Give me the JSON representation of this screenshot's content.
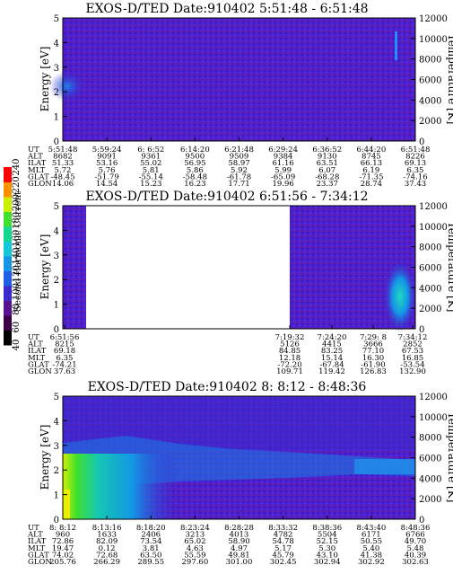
{
  "panels": [
    {
      "title": "EXOS-D/TED   Date:910402   5:51:48 - 6:51:48",
      "ylabel_left": "Energy [eV]",
      "ylabel_right": "Temperature [K]",
      "y_ticks": [
        "0",
        "1",
        "2",
        "3",
        "4",
        "5"
      ],
      "t_ticks": [
        "0",
        "2000",
        "4000",
        "6000",
        "8000",
        "10000",
        "12000"
      ],
      "eph_labels": [
        "UT",
        "ALT",
        "ILAT",
        "MLT",
        "GLAT",
        "GLON"
      ],
      "eph_columns": [
        [
          "5:51:48",
          "8682",
          "51.33",
          "5.72",
          "-48.45",
          "14.06"
        ],
        [
          "5:59:24",
          "9091",
          "53.16",
          "5.76",
          "-51.79",
          "14.54"
        ],
        [
          "6: 6:52",
          "9361",
          "55.02",
          "5.81",
          "-55.14",
          "15.23"
        ],
        [
          "6:14:20",
          "9500",
          "56.95",
          "5.86",
          "-58.48",
          "16.23"
        ],
        [
          "6:21:48",
          "9509",
          "58.97",
          "5.92",
          "-61.78",
          "17.71"
        ],
        [
          "6:29:24",
          "9384",
          "61.16",
          "5.99",
          "-65.09",
          "19.96"
        ],
        [
          "6:36:52",
          "9130",
          "63.51",
          "6.07",
          "-68.28",
          "23.37"
        ],
        [
          "6:44:20",
          "8745",
          "66.13",
          "6.19",
          "-71.35",
          "28.74"
        ],
        [
          "6:51:48",
          "8226",
          "69.13",
          "6.35",
          "-74.16",
          "37.43"
        ]
      ]
    },
    {
      "title": "EXOS-D/TED   Date:910402   6:51:56 - 7:34:12",
      "ylabel_left": "Energy [eV]",
      "ylabel_right": "Temperature [K]",
      "y_ticks": [
        "0",
        "1",
        "2",
        "3",
        "4",
        "5"
      ],
      "t_ticks": [
        "0",
        "2000",
        "4000",
        "6000",
        "8000",
        "10000",
        "12000"
      ],
      "eph_labels": [
        "UT",
        "ALT",
        "ILAT",
        "MLT",
        "GLAT",
        "GLON"
      ],
      "eph_left": [
        "6:51:56",
        "8215",
        "69.18",
        "6.35",
        "-74.21",
        "37.63"
      ],
      "eph_columns": [
        [
          "7:19:32",
          "5126",
          "84.85",
          "12.18",
          "-72.20",
          "109.71"
        ],
        [
          "7:24:20",
          "4415",
          "83.25",
          "15.14",
          "-67.84",
          "119.42"
        ],
        [
          "7:29: 8",
          "3666",
          "77.10",
          "16.30",
          "-61.90",
          "126.83"
        ],
        [
          "7:34:12",
          "2852",
          "67.53",
          "16.85",
          "-53.54",
          "132.90"
        ]
      ]
    },
    {
      "title": "EXOS-D/TED   Date:910402   8: 8:12 - 8:48:36",
      "ylabel_left": "Energy [eV]",
      "ylabel_right": "Temperature [K]",
      "y_ticks": [
        "0",
        "1",
        "2",
        "3",
        "4",
        "5"
      ],
      "t_ticks": [
        "0",
        "2000",
        "4000",
        "6000",
        "8000",
        "10000",
        "12000"
      ],
      "eph_labels": [
        "UT",
        "ALT",
        "ILAT",
        "MLT",
        "GLAT",
        "GLON"
      ],
      "eph_columns": [
        [
          "8: 8:12",
          "960",
          "72.86",
          "19.47",
          "74.02",
          "205.76"
        ],
        [
          "8:13:16",
          "1633",
          "82.09",
          "0.12",
          "72.68",
          "266.29"
        ],
        [
          "8:18:20",
          "2406",
          "73.54",
          "3.81",
          "63.50",
          "289.55"
        ],
        [
          "8:23:24",
          "3213",
          "65.02",
          "4.63",
          "55.59",
          "297.60"
        ],
        [
          "8:28:28",
          "4013",
          "58.90",
          "4.97",
          "49.81",
          "301.00"
        ],
        [
          "8:33:32",
          "4782",
          "54.78",
          "5.17",
          "45.79",
          "302.45"
        ],
        [
          "8:38:36",
          "5504",
          "52.15",
          "5.30",
          "43.10",
          "302.94"
        ],
        [
          "8:43:40",
          "6171",
          "50.55",
          "5.40",
          "41.38",
          "302.92"
        ],
        [
          "8:48:36",
          "6766",
          "49.70",
          "5.48",
          "40.39",
          "302.63"
        ]
      ]
    }
  ],
  "colorbar": {
    "label": "Second Harmonic Current",
    "ticks": [
      "40",
      "60",
      "80",
      "100",
      "120",
      "140",
      "160",
      "180",
      "200",
      "220",
      "240"
    ],
    "colors": [
      "#000000",
      "#3b004a",
      "#5a1090",
      "#3a2bd0",
      "#1f5fe8",
      "#1495e6",
      "#10c8d8",
      "#14d890",
      "#40e030",
      "#c8f000",
      "#ff9000",
      "#ff0000"
    ]
  },
  "chart_data": [
    {
      "type": "heatmap",
      "title": "EXOS-D/TED   Date:910402   5:51:48 - 6:51:48",
      "xlabel": "UT",
      "ylabel": "Energy [eV]",
      "ylabel_right": "Temperature [K]",
      "x_range": [
        "5:51:48",
        "6:51:48"
      ],
      "ylim": [
        0,
        5
      ],
      "ylim_right": [
        0,
        12000
      ],
      "features": [
        {
          "ut": "5:51:48",
          "energy_range": [
            2.0,
            2.8
          ],
          "level": 100
        },
        {
          "ut": "6:50:30",
          "energy_range": [
            2.5,
            4.5
          ],
          "level": 130
        }
      ]
    },
    {
      "type": "heatmap",
      "title": "EXOS-D/TED   Date:910402   6:51:56 - 7:34:12",
      "xlabel": "UT",
      "ylabel": "Energy [eV]",
      "ylabel_right": "Temperature [K]",
      "x_range": [
        "6:51:56",
        "7:34:12"
      ],
      "ylim": [
        0,
        5
      ],
      "ylim_right": [
        0,
        12000
      ],
      "features": [
        {
          "ut": "7:33:00",
          "energy_range": [
            0.0,
            3.5
          ],
          "level": 130
        }
      ]
    },
    {
      "type": "heatmap",
      "title": "EXOS-D/TED   Date:910402   8: 8:12 - 8:48:36",
      "xlabel": "UT",
      "ylabel": "Energy [eV]",
      "ylabel_right": "Temperature [K]",
      "x_range": [
        "8: 8:12",
        "8:48:36"
      ],
      "ylim": [
        0,
        5
      ],
      "ylim_right": [
        0,
        12000
      ],
      "features": [
        {
          "ut": "8: 8:12",
          "energy_range": [
            0.0,
            2.5
          ],
          "level": 200
        },
        {
          "ut": "8:13:16",
          "energy_range": [
            0.0,
            3.0
          ],
          "level": 140
        },
        {
          "ut": "8:18:20",
          "energy_range": [
            1.5,
            2.8
          ],
          "level": 110
        }
      ]
    }
  ]
}
